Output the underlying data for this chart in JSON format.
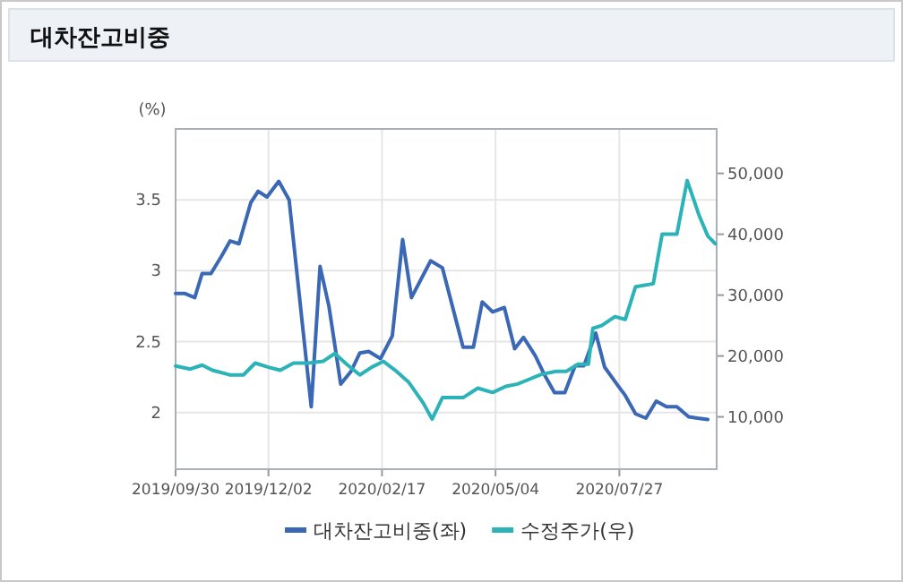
{
  "chart_data": {
    "type": "line",
    "title": "대차잔고비중",
    "ylabel": "(%)",
    "grid": true,
    "legend": "bottom",
    "xlim": [
      "2019-09-30",
      "2020-10-01"
    ],
    "xticks": [
      {
        "value": "2019-09-30",
        "label": "2019/09/30"
      },
      {
        "value": "2019-12-02",
        "label": "2019/12/02"
      },
      {
        "value": "2020-02-17",
        "label": "2020/02/17"
      },
      {
        "value": "2020-05-04",
        "label": "2020/05/04"
      },
      {
        "value": "2020-07-27",
        "label": "2020/07/27"
      }
    ],
    "ylim": [
      1.6,
      4.0
    ],
    "yticks": [
      2,
      2.5,
      3,
      3.5
    ],
    "y2lim": [
      1400,
      57300
    ],
    "y2ticks": [
      {
        "value": 10000,
        "label": "10,000"
      },
      {
        "value": 20000,
        "label": "20,000"
      },
      {
        "value": 30000,
        "label": "30,000"
      },
      {
        "value": 40000,
        "label": "40,000"
      },
      {
        "value": 50000,
        "label": "50,000"
      }
    ],
    "series": [
      {
        "name": "대차잔고비중(좌)",
        "color": "#3b68b5",
        "x": [
          "2019-09-30",
          "2019-10-06",
          "2019-10-13",
          "2019-10-18",
          "2019-10-24",
          "2019-10-31",
          "2019-11-06",
          "2019-11-12",
          "2019-11-20",
          "2019-11-25",
          "2019-12-01",
          "2019-12-09",
          "2019-12-16",
          "2019-12-31",
          "2020-01-06",
          "2020-01-12",
          "2020-01-20",
          "2020-01-27",
          "2020-02-02",
          "2020-02-08",
          "2020-02-16",
          "2020-02-24",
          "2020-03-02",
          "2020-03-08",
          "2020-03-21",
          "2020-03-29",
          "2020-04-12",
          "2020-04-19",
          "2020-04-25",
          "2020-05-02",
          "2020-05-10",
          "2020-05-17",
          "2020-05-23",
          "2020-05-31",
          "2020-06-06",
          "2020-06-13",
          "2020-06-20",
          "2020-06-27",
          "2020-07-03",
          "2020-07-11",
          "2020-07-17",
          "2020-07-26",
          "2020-07-31",
          "2020-08-07",
          "2020-08-14",
          "2020-08-21",
          "2020-08-28",
          "2020-09-04",
          "2020-09-12",
          "2020-09-18",
          "2020-09-25"
        ],
        "values": [
          2.84,
          2.84,
          2.81,
          2.98,
          2.98,
          3.1,
          3.21,
          3.19,
          3.48,
          3.56,
          3.52,
          3.63,
          3.5,
          2.04,
          3.03,
          2.75,
          2.2,
          2.29,
          2.42,
          2.43,
          2.38,
          2.54,
          3.22,
          2.81,
          3.07,
          3.02,
          2.46,
          2.46,
          2.78,
          2.71,
          2.74,
          2.45,
          2.53,
          2.4,
          2.27,
          2.14,
          2.14,
          2.33,
          2.33,
          2.56,
          2.32,
          2.19,
          2.12,
          1.99,
          1.96,
          2.08,
          2.04,
          2.04,
          1.97,
          1.96,
          1.95
        ]
      },
      {
        "name": "수정주가(우)",
        "color": "#2bb3b8",
        "axis": "y2",
        "x": [
          "2019-09-30",
          "2019-10-10",
          "2019-10-18",
          "2019-10-25",
          "2019-11-06",
          "2019-11-15",
          "2019-11-23",
          "2019-12-02",
          "2019-12-10",
          "2019-12-19",
          "2019-12-29",
          "2020-01-08",
          "2020-01-16",
          "2020-01-24",
          "2020-02-02",
          "2020-02-10",
          "2020-02-18",
          "2020-02-26",
          "2020-03-06",
          "2020-03-16",
          "2020-03-22",
          "2020-03-29",
          "2020-04-12",
          "2020-04-22",
          "2020-05-02",
          "2020-05-11",
          "2020-05-19",
          "2020-05-27",
          "2020-06-04",
          "2020-06-14",
          "2020-06-21",
          "2020-06-29",
          "2020-07-06",
          "2020-07-09",
          "2020-07-15",
          "2020-07-24",
          "2020-07-31",
          "2020-08-07",
          "2020-08-19",
          "2020-08-25",
          "2020-09-04",
          "2020-09-11",
          "2020-09-19",
          "2020-09-25",
          "2020-09-30"
        ],
        "values": [
          18350,
          17850,
          18500,
          17650,
          16880,
          16880,
          18830,
          18150,
          17650,
          18830,
          18830,
          19120,
          20410,
          18650,
          16880,
          18150,
          19120,
          17650,
          15710,
          12270,
          9620,
          13150,
          13150,
          14710,
          14000,
          15000,
          15400,
          16180,
          16970,
          17470,
          17470,
          18650,
          18650,
          24530,
          25000,
          26470,
          26000,
          31380,
          31870,
          40000,
          40000,
          48820,
          43150,
          39700,
          38440
        ]
      }
    ]
  }
}
